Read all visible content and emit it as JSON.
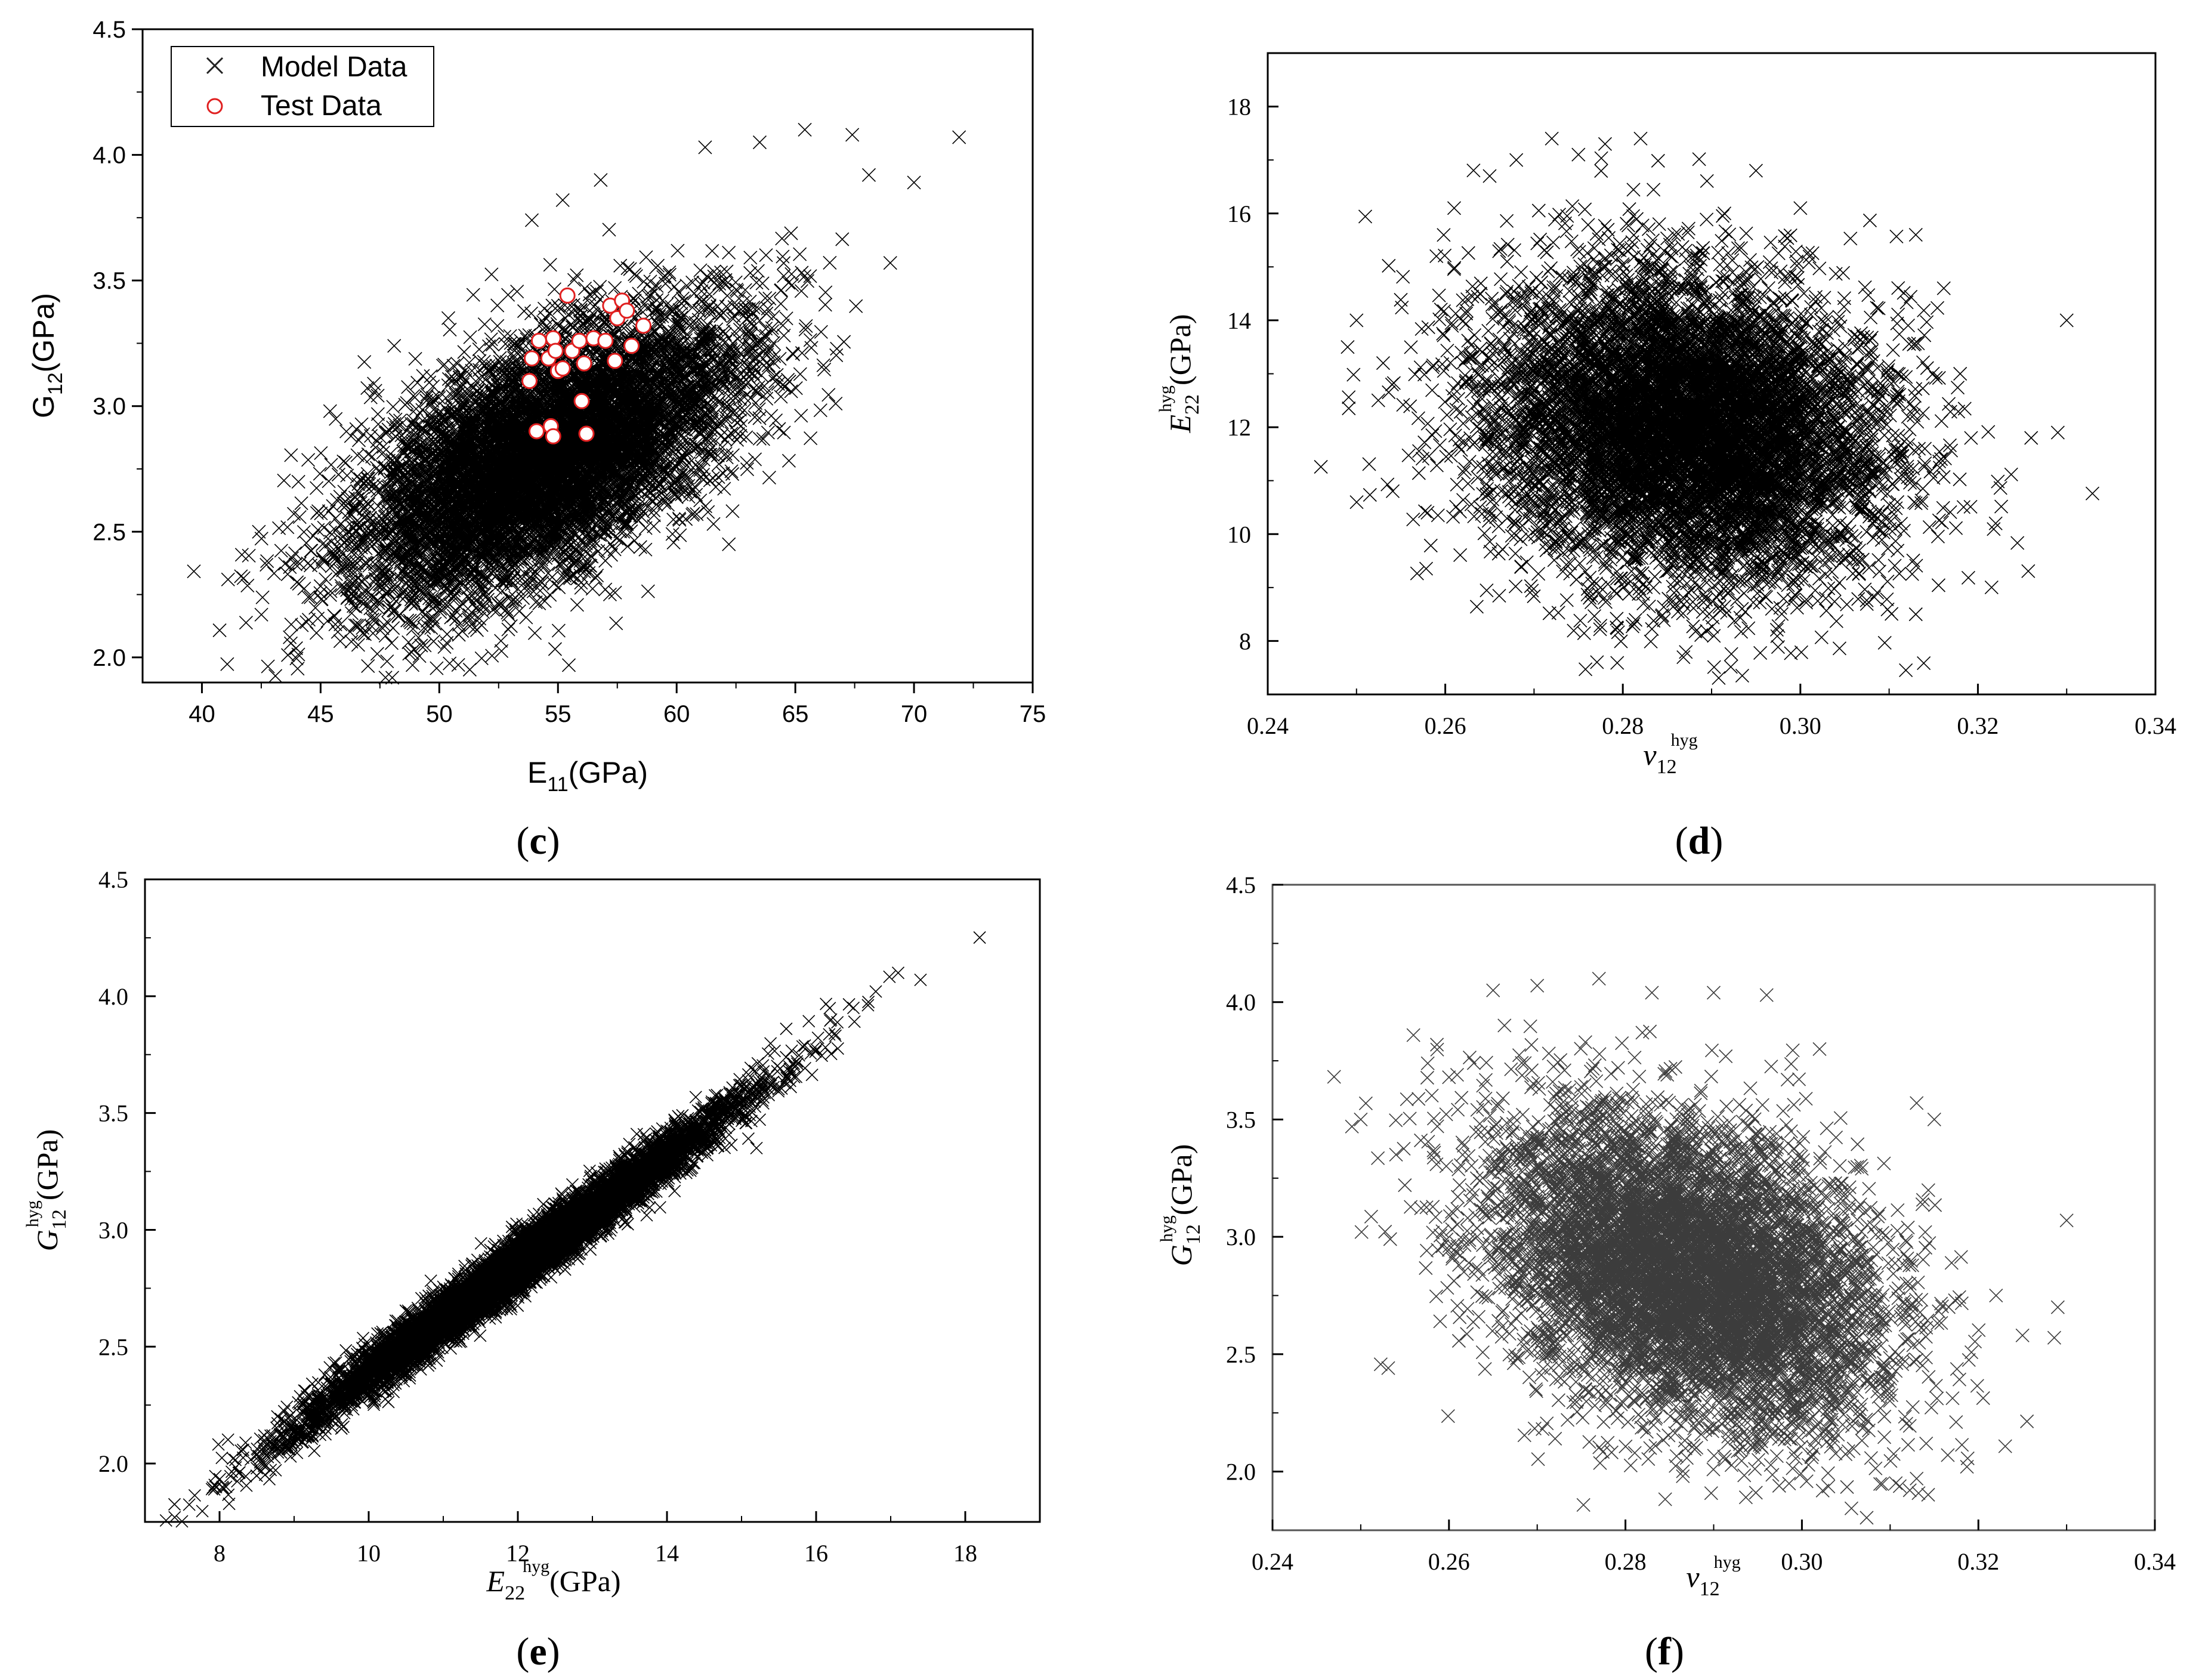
{
  "figure": {
    "caption": ""
  },
  "chart_data": [
    {
      "id": "c",
      "panel_label": "c",
      "type": "scatter",
      "title": "",
      "xlabel": {
        "main": "E",
        "sub": "11",
        "sup": "",
        "unit": "(GPa)"
      },
      "ylabel": {
        "main": "G",
        "sub": "12",
        "sup": "",
        "unit": "(GPa)"
      },
      "xlim": [
        37.5,
        75
      ],
      "ylim": [
        1.9,
        4.5
      ],
      "xticks": [
        40,
        45,
        50,
        55,
        60,
        65,
        70,
        75
      ],
      "yticks": [
        2.0,
        2.5,
        3.0,
        3.5,
        4.0,
        4.5
      ],
      "x_tick_labels": [
        "40",
        "45",
        "50",
        "55",
        "60",
        "65",
        "70",
        "75"
      ],
      "y_tick_labels": [
        "2.0",
        "2.5",
        "3.0",
        "3.5",
        "4.0",
        "4.5"
      ],
      "grid": false,
      "legend": {
        "position": "top-left",
        "entries": [
          {
            "label": "Model Data",
            "marker": "x",
            "color": "#000000"
          },
          {
            "label": "Test Data",
            "marker": "circle",
            "color": "#e02020"
          }
        ]
      },
      "series": [
        {
          "name": "Model Data",
          "distribution": {
            "count": 8000,
            "mean_x": 54.5,
            "mean_y": 2.8,
            "sd_x": 4.0,
            "sd_y": 0.28,
            "corr": 0.6
          },
          "outliers_x": [
            41.1,
            43.7,
            42.4,
            48.1,
            50.8,
            53.9,
            55.2,
            56.8,
            61.2,
            63.5,
            65.4,
            67.4,
            69.0,
            70.0,
            71.9,
            68.1,
            62.2,
            66.7,
            44.5,
            45.4
          ],
          "outliers_y": [
            2.31,
            2.08,
            2.5,
            3.24,
            1.97,
            3.74,
            3.82,
            3.9,
            4.03,
            4.05,
            4.1,
            4.08,
            3.57,
            3.89,
            4.07,
            3.92,
            2.45,
            3.01,
            2.15,
            2.98
          ]
        },
        {
          "name": "Test Data",
          "x": [
            55.4,
            57.2,
            57.7,
            58.6,
            57.5,
            54.2,
            54.8,
            55.6,
            56.5,
            57.0,
            53.9,
            54.6,
            55.9,
            56.1,
            57.4,
            58.1,
            53.8,
            55.0,
            56.0,
            54.1,
            54.7,
            54.8,
            56.2,
            55.2,
            57.9,
            54.9
          ],
          "y": [
            3.44,
            3.4,
            3.42,
            3.32,
            3.35,
            3.26,
            3.27,
            3.22,
            3.27,
            3.26,
            3.19,
            3.19,
            3.26,
            3.17,
            3.18,
            3.24,
            3.1,
            3.14,
            3.02,
            2.9,
            2.92,
            2.88,
            2.89,
            3.15,
            3.38,
            3.22
          ]
        }
      ]
    },
    {
      "id": "d",
      "panel_label": "d",
      "type": "scatter",
      "title": "",
      "xlabel": {
        "main": "ν",
        "sub": "12",
        "sup": "hyg",
        "unit": ""
      },
      "ylabel": {
        "main": "E",
        "sub": "22",
        "sup": "hyg",
        "unit": "(GPa)"
      },
      "xlim": [
        0.24,
        0.34
      ],
      "ylim": [
        7,
        19
      ],
      "xticks": [
        0.24,
        0.26,
        0.28,
        0.3,
        0.32,
        0.34
      ],
      "yticks": [
        8,
        10,
        12,
        14,
        16,
        18
      ],
      "x_tick_labels": [
        "0.24",
        "0.26",
        "0.28",
        "0.30",
        "0.32",
        "0.34"
      ],
      "y_tick_labels": [
        "8",
        "10",
        "12",
        "14",
        "16",
        "18"
      ],
      "grid": false,
      "series": [
        {
          "name": "Model Data",
          "distribution": {
            "count": 8000,
            "mean_x": 0.287,
            "mean_y": 12.0,
            "sd_x": 0.011,
            "sd_y": 1.4,
            "corr": -0.15
          },
          "outliers_x": [
            0.249,
            0.25,
            0.253,
            0.254,
            0.258,
            0.259,
            0.261,
            0.265,
            0.268,
            0.272,
            0.275,
            0.278,
            0.282,
            0.295,
            0.3,
            0.313,
            0.318,
            0.322,
            0.326,
            0.329,
            0.33,
            0.313
          ],
          "outliers_y": [
            13.5,
            14.0,
            13.2,
            12.8,
            10.4,
            15.2,
            16.1,
            16.7,
            17.0,
            17.4,
            17.1,
            17.3,
            17.4,
            16.8,
            16.1,
            15.6,
            13.0,
            10.2,
            11.8,
            11.9,
            14.0,
            8.5
          ]
        }
      ]
    },
    {
      "id": "e",
      "panel_label": "e",
      "type": "scatter",
      "title": "",
      "xlabel": {
        "main": "E",
        "sub": "22",
        "sup": "hyg",
        "unit": "(GPa)"
      },
      "ylabel": {
        "main": "G",
        "sub": "12",
        "sup": "hyg",
        "unit": "(GPa)"
      },
      "xlim": [
        7,
        19
      ],
      "ylim": [
        1.75,
        4.5
      ],
      "xticks": [
        8,
        10,
        12,
        14,
        16,
        18
      ],
      "yticks": [
        2.0,
        2.5,
        3.0,
        3.5,
        4.0,
        4.5
      ],
      "x_tick_labels": [
        "8",
        "10",
        "12",
        "14",
        "16",
        "18"
      ],
      "y_tick_labels": [
        "2.0",
        "2.5",
        "3.0",
        "3.5",
        "4.0",
        "4.5"
      ],
      "grid": false,
      "series": [
        {
          "name": "Model Data",
          "distribution": {
            "count": 8000,
            "mean_x": 12.0,
            "mean_y": 2.85,
            "sd_x": 1.4,
            "sd_y": 0.33,
            "corr": 0.985
          },
          "outliers_x": [
            8.5,
            8.6,
            16.5,
            16.8,
            17.1,
            17.4,
            16.2,
            15.2
          ],
          "outliers_y": [
            1.98,
            2.12,
            3.95,
            4.02,
            4.1,
            4.07,
            3.9,
            3.35
          ]
        }
      ]
    },
    {
      "id": "f",
      "panel_label": "f",
      "type": "scatter",
      "title": "",
      "xlabel": {
        "main": "ν",
        "sub": "12",
        "sup": "hyg",
        "unit": ""
      },
      "ylabel": {
        "main": "G",
        "sub": "12",
        "sup": "hyg",
        "unit": "(GPa)"
      },
      "xlim": [
        0.24,
        0.34
      ],
      "ylim": [
        1.75,
        4.5
      ],
      "xticks": [
        0.24,
        0.26,
        0.28,
        0.3,
        0.32,
        0.34
      ],
      "yticks": [
        2.0,
        2.5,
        3.0,
        3.5,
        4.0,
        4.5
      ],
      "x_tick_labels": [
        "0.24",
        "0.26",
        "0.28",
        "0.30",
        "0.32",
        "0.34"
      ],
      "y_tick_labels": [
        "2.0",
        "2.5",
        "3.0",
        "3.5",
        "4.0",
        "4.5"
      ],
      "grid": false,
      "series": [
        {
          "name": "Model Data",
          "distribution": {
            "count": 7000,
            "mean_x": 0.287,
            "mean_y": 2.85,
            "sd_x": 0.011,
            "sd_y": 0.33,
            "corr": -0.35
          },
          "outliers_x": [
            0.249,
            0.25,
            0.254,
            0.255,
            0.259,
            0.26,
            0.265,
            0.27,
            0.277,
            0.283,
            0.29,
            0.296,
            0.302,
            0.313,
            0.315,
            0.322,
            0.325,
            0.329,
            0.33,
            0.313
          ],
          "outliers_y": [
            3.47,
            3.5,
            3.35,
            3.22,
            2.64,
            3.68,
            4.05,
            4.07,
            4.1,
            4.04,
            4.04,
            4.03,
            3.8,
            3.57,
            3.5,
            2.75,
            2.58,
            2.7,
            3.07,
            1.97
          ]
        }
      ]
    }
  ]
}
